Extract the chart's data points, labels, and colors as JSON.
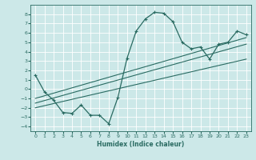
{
  "xlabel": "Humidex (Indice chaleur)",
  "background_color": "#cce8e8",
  "grid_color": "#ffffff",
  "line_color": "#2a6b62",
  "xlim": [
    -0.5,
    23.5
  ],
  "ylim": [
    -4.5,
    9.0
  ],
  "xticks": [
    0,
    1,
    2,
    3,
    4,
    5,
    6,
    7,
    8,
    9,
    10,
    11,
    12,
    13,
    14,
    15,
    16,
    17,
    18,
    19,
    20,
    21,
    22,
    23
  ],
  "yticks": [
    -4,
    -3,
    -2,
    -1,
    0,
    1,
    2,
    3,
    4,
    5,
    6,
    7,
    8
  ],
  "main_curve_x": [
    0,
    1,
    2,
    3,
    4,
    5,
    6,
    7,
    8,
    9,
    10,
    11,
    12,
    13,
    14,
    15,
    16,
    17,
    18,
    19,
    20,
    21,
    22,
    23
  ],
  "main_curve_y": [
    1.5,
    -0.3,
    -1.2,
    -2.5,
    -2.6,
    -1.7,
    -2.8,
    -2.8,
    -3.7,
    -0.9,
    3.3,
    6.2,
    7.5,
    8.2,
    8.1,
    7.2,
    5.0,
    4.3,
    4.5,
    3.2,
    4.8,
    5.0,
    6.2,
    5.8
  ],
  "line1_x": [
    0,
    23
  ],
  "line1_y": [
    -1.0,
    5.5
  ],
  "line2_x": [
    0,
    23
  ],
  "line2_y": [
    -1.5,
    4.8
  ],
  "line3_x": [
    0,
    23
  ],
  "line3_y": [
    -2.0,
    3.2
  ]
}
